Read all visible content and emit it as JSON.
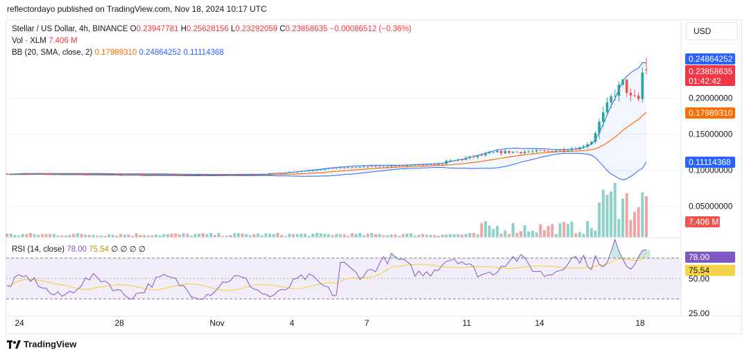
{
  "caption": "reflectordayo published on TradingView.com, Nov 18, 2024 10:17 UTC",
  "currency_button": "USD",
  "footer_brand": "TradingView",
  "legend": {
    "main_title": "Stellar / US Dollar, 4h, BINANCE",
    "o_label": "O",
    "o_value": "0.23947781",
    "h_label": "H",
    "h_value": "0.25628156",
    "l_label": "L",
    "l_value": "0.23292059",
    "c_label": "C",
    "c_value": "0.23858635",
    "change": "−0.00086512 (−0.36%)",
    "vol_label": "Vol · XLM",
    "vol_value": "7.406 M",
    "bb_label": "BB (20, SMA, close, 2)",
    "bb_mid": "0.17989310",
    "bb_upper": "0.24864252",
    "bb_lower": "0.11114368",
    "rsi_label": "RSI (14, close)",
    "rsi_value": "78.00",
    "rsi_ma": "75.54",
    "rsi_extra": "∅ ∅ ∅ ∅"
  },
  "price_axis": [
    "0.20000000",
    "0.15000000",
    "0.10000000",
    "0.05000000"
  ],
  "price_tags": {
    "bb_upper": "0.24864252",
    "last_price": "0.23858635",
    "countdown": "01:42:42",
    "bb_mid": "0.17989310",
    "bb_lower": "0.11114368",
    "volume": "7.406 M"
  },
  "rsi_axis": [
    "50.00",
    "25.00"
  ],
  "rsi_tags": {
    "rsi": "78.00",
    "rsi_ma": "75.54"
  },
  "time_axis": [
    "24",
    "28",
    "Nov",
    "4",
    "7",
    "11",
    "14",
    "18"
  ],
  "colors": {
    "up": "#26a69a",
    "down": "#ef5350",
    "bb_basis": "#ff6d00",
    "bb_band": "#2962ff",
    "rsi": "#7e57c2",
    "rsi_ma": "#f7d34a",
    "vol_up": "#8fd1c8",
    "vol_down": "#f0a5a3"
  },
  "chart_data": {
    "type": "candlestick",
    "symbol": "Stellar / US Dollar",
    "interval": "4h",
    "exchange": "BINANCE",
    "price_range": [
      0.0,
      0.27
    ],
    "x_axis_ticks": [
      "24",
      "28",
      "Nov",
      "4",
      "7",
      "11",
      "14",
      "18"
    ],
    "segments": [
      {
        "from": "Oct 23",
        "to": "Nov 5",
        "close_approx": [
          0.095,
          0.093
        ]
      },
      {
        "from": "Nov 5",
        "to": "Nov 11",
        "close_approx": [
          0.093,
          0.108
        ]
      },
      {
        "from": "Nov 11",
        "to": "Nov 15",
        "close_approx": [
          0.108,
          0.13
        ]
      },
      {
        "from": "Nov 15",
        "to": "Nov 16",
        "close_approx": [
          0.13,
          0.24
        ]
      },
      {
        "from": "Nov 16",
        "to": "Nov 18",
        "close_approx": [
          0.24,
          0.239
        ]
      }
    ],
    "last": {
      "open": 0.23947781,
      "high": 0.25628156,
      "low": 0.23292059,
      "close": 0.23858635,
      "change": -0.00086512,
      "change_pct": -0.36
    },
    "bollinger": {
      "basis": 0.1798931,
      "upper": 0.24864252,
      "lower": 0.11114368
    },
    "volume_last": "7.406 M",
    "rsi": {
      "value": 78.0,
      "ma": 75.54,
      "range": [
        0,
        100
      ],
      "levels": [
        30,
        50,
        70
      ]
    }
  }
}
